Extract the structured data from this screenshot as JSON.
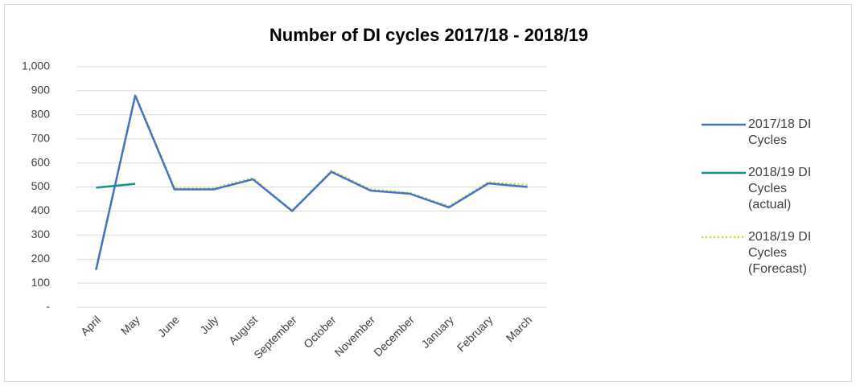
{
  "chart_data": {
    "type": "line",
    "title": "Number of DI cycles 2017/18 - 2018/19",
    "categories": [
      "April",
      "May",
      "June",
      "July",
      "August",
      "September",
      "October",
      "November",
      "December",
      "January",
      "February",
      "March"
    ],
    "series": [
      {
        "name": "2017/18 DI Cycles",
        "color": "#4472c4",
        "style": "solid",
        "values": [
          155,
          880,
          490,
          490,
          532,
          400,
          563,
          485,
          472,
          415,
          515,
          500
        ]
      },
      {
        "name": "2018/19 DI Cycles (actual)",
        "color": "#168f8a",
        "style": "solid",
        "values": [
          497,
          513,
          null,
          null,
          null,
          null,
          null,
          null,
          null,
          null,
          null,
          null
        ]
      },
      {
        "name": "2018/19 DI Cycles (Forecast)",
        "color": "#c6d831",
        "style": "dotted",
        "values": [
          160,
          885,
          495,
          495,
          538,
          400,
          568,
          490,
          475,
          420,
          520,
          508
        ]
      }
    ],
    "ylim": [
      0,
      1000
    ],
    "yticks": [
      {
        "value": 0,
        "label": "-"
      },
      100,
      200,
      300,
      400,
      500,
      600,
      700,
      800,
      900,
      {
        "value": 1000,
        "label": "1,000"
      }
    ],
    "grid": true,
    "legend": "right"
  }
}
